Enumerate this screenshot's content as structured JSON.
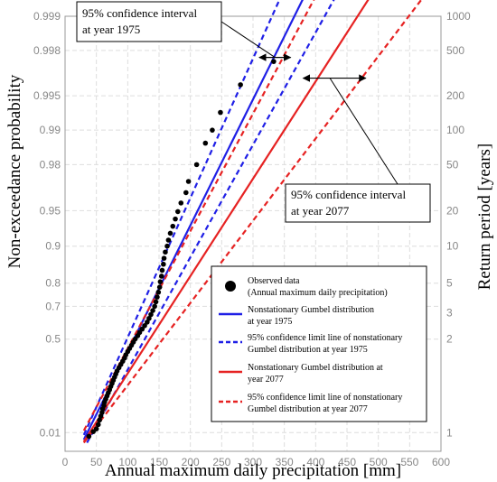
{
  "chart_data": {
    "type": "line",
    "xlabel": "Annual maximum daily precipitation [mm]",
    "ylabel": "Non-exceedance probability",
    "ylabel_right": "Return period  [years]",
    "scale": "gumbel-probability",
    "xlim": [
      0,
      600
    ],
    "x_ticks": [
      "0",
      "50",
      "100",
      "150",
      "200",
      "250",
      "300",
      "350",
      "400",
      "450",
      "500",
      "550",
      "600"
    ],
    "y_ticks_left": [
      "0.01",
      "0.5",
      "0.7",
      "0.8",
      "0.9",
      "0.95",
      "0.98",
      "0.99",
      "0.995",
      "0.998",
      "0.999"
    ],
    "y_ticks_right": [
      "1",
      "2",
      "3",
      "5",
      "10",
      "20",
      "50",
      "100",
      "200",
      "500",
      "1000"
    ],
    "grid": true,
    "series": [
      {
        "name": "Observed data",
        "name2": "(Annual maximum daily precipitation)",
        "style": "scatter",
        "color": "#000000",
        "points": [
          [
            38,
            0.007
          ],
          [
            45,
            0.011
          ],
          [
            50,
            0.014
          ],
          [
            53,
            0.02
          ],
          [
            55,
            0.028
          ],
          [
            57,
            0.037
          ],
          [
            59,
            0.047
          ],
          [
            60,
            0.058
          ],
          [
            62,
            0.07
          ],
          [
            63,
            0.083
          ],
          [
            65,
            0.097
          ],
          [
            67,
            0.112
          ],
          [
            69,
            0.128
          ],
          [
            71,
            0.145
          ],
          [
            73,
            0.164
          ],
          [
            75,
            0.183
          ],
          [
            77,
            0.203
          ],
          [
            79,
            0.224
          ],
          [
            81,
            0.245
          ],
          [
            83,
            0.267
          ],
          [
            86,
            0.29
          ],
          [
            89,
            0.314
          ],
          [
            92,
            0.338
          ],
          [
            95,
            0.362
          ],
          [
            97,
            0.386
          ],
          [
            100,
            0.41
          ],
          [
            103,
            0.433
          ],
          [
            106,
            0.456
          ],
          [
            109,
            0.479
          ],
          [
            112,
            0.501
          ],
          [
            116,
            0.524
          ],
          [
            119,
            0.546
          ],
          [
            123,
            0.568
          ],
          [
            127,
            0.59
          ],
          [
            131,
            0.612
          ],
          [
            134,
            0.634
          ],
          [
            137,
            0.656
          ],
          [
            140,
            0.678
          ],
          [
            143,
            0.7
          ],
          [
            145,
            0.722
          ],
          [
            147,
            0.744
          ],
          [
            149,
            0.765
          ],
          [
            151,
            0.785
          ],
          [
            152,
            0.805
          ],
          [
            154,
            0.824
          ],
          [
            155,
            0.842
          ],
          [
            157,
            0.859
          ],
          [
            158,
            0.874
          ],
          [
            160,
            0.888
          ],
          [
            163,
            0.9
          ],
          [
            165,
            0.911
          ],
          [
            168,
            0.922
          ],
          [
            172,
            0.932
          ],
          [
            176,
            0.941
          ],
          [
            180,
            0.949
          ],
          [
            185,
            0.957
          ],
          [
            193,
            0.965
          ],
          [
            197,
            0.972
          ],
          [
            210,
            0.98
          ],
          [
            224,
            0.987
          ],
          [
            235,
            0.99
          ],
          [
            248,
            0.993
          ],
          [
            280,
            0.996
          ],
          [
            333,
            0.9975
          ]
        ]
      },
      {
        "name": "Nonstationary Gumbel distribution",
        "name2": "at year 1975",
        "style": "solid",
        "color": "#1f1fe6",
        "x": [
          30,
          380
        ],
        "y": [
          0.005,
          0.9993
        ]
      },
      {
        "name": "95% confidence limit line of nonstationary",
        "name2": "Gumbel distribution at year 1975",
        "style": "dashed",
        "color": "#1f1fe6",
        "lower": {
          "x": [
            35,
            430
          ],
          "y": [
            0.0035,
            0.9993
          ]
        },
        "upper": {
          "x": [
            30,
            343
          ],
          "y": [
            0.008,
            0.9993
          ]
        }
      },
      {
        "name": "Nonstationary Gumbel distribution at",
        "name2": "year 2077",
        "style": "solid",
        "color": "#e62222",
        "x": [
          30,
          485
        ],
        "y": [
          0.004,
          0.9993
        ]
      },
      {
        "name": "95% confidence limit line of nonstationary",
        "name2": "Gumbel distribution at year 2077",
        "style": "dashed",
        "color": "#e62222",
        "lower": {
          "x": [
            30,
            570
          ],
          "y": [
            0.0035,
            0.9993
          ]
        },
        "upper": {
          "x": [
            30,
            398
          ],
          "y": [
            0.012,
            0.9993
          ]
        }
      }
    ],
    "annotations": [
      {
        "text_line1": "95% confidence interval",
        "text_line2": "at year 1975",
        "x1": 310,
        "x2": 360,
        "y": 0.9977
      },
      {
        "text_line1": "95% confidence interval",
        "text_line2": "at year 2077",
        "x1": 380,
        "x2": 480,
        "y": 0.9965
      }
    ],
    "legend_position": "lower-right"
  }
}
